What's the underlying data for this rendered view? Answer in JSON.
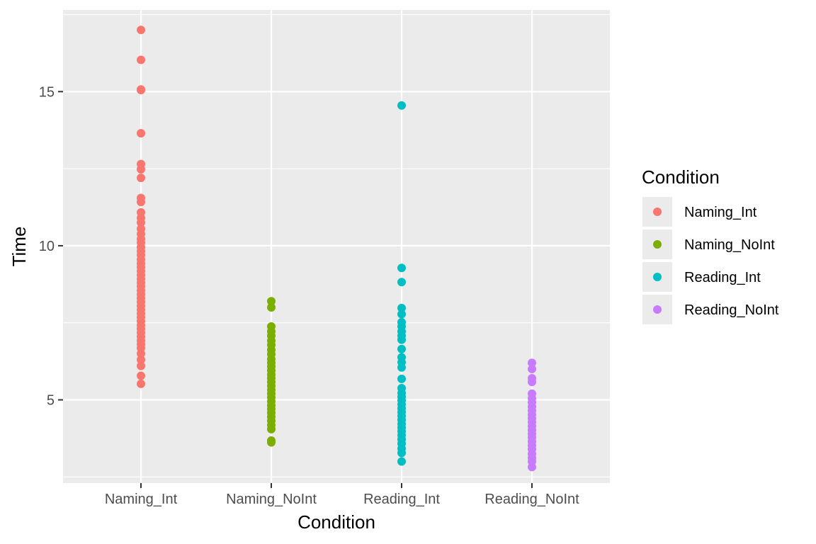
{
  "chart_data": {
    "type": "scatter",
    "title": "",
    "xlabel": "Condition",
    "ylabel": "Time",
    "categories": [
      "Naming_Int",
      "Naming_NoInt",
      "Reading_Int",
      "Reading_NoInt"
    ],
    "ylim": [
      2.3,
      17.65
    ],
    "y_ticks": [
      5,
      10,
      15
    ],
    "y_tick_labels": [
      "5",
      "10",
      "15"
    ],
    "grid": true,
    "legend": {
      "title": "Condition",
      "position": "right",
      "entries": [
        "Naming_Int",
        "Naming_NoInt",
        "Reading_Int",
        "Reading_NoInt"
      ]
    },
    "series": [
      {
        "name": "Naming_Int",
        "color": "#F8766D",
        "values": [
          17.0,
          16.03,
          15.07,
          15.05,
          13.65,
          12.65,
          12.48,
          12.2,
          11.55,
          11.42,
          11.08,
          10.9,
          10.75,
          10.55,
          10.38,
          10.22,
          10.1,
          9.95,
          9.82,
          9.7,
          9.55,
          9.42,
          9.3,
          9.18,
          9.05,
          8.92,
          8.8,
          8.68,
          8.55,
          8.42,
          8.3,
          8.18,
          8.05,
          7.92,
          7.8,
          7.68,
          7.55,
          7.42,
          7.3,
          7.18,
          7.05,
          6.92,
          6.8,
          6.68,
          6.5,
          6.3,
          6.1,
          5.78,
          5.52
        ]
      },
      {
        "name": "Naming_NoInt",
        "color": "#7CAE00",
        "values": [
          8.2,
          8.0,
          7.38,
          7.22,
          7.08,
          6.92,
          6.78,
          6.62,
          6.48,
          6.32,
          6.2,
          6.08,
          5.95,
          5.82,
          5.7,
          5.58,
          5.45,
          5.32,
          5.2,
          5.08,
          4.95,
          4.82,
          4.7,
          4.58,
          4.45,
          4.32,
          4.18,
          4.05,
          3.68,
          3.62
        ]
      },
      {
        "name": "Reading_Int",
        "color": "#00BFC4",
        "values": [
          14.55,
          9.28,
          8.82,
          7.98,
          7.78,
          7.52,
          7.38,
          7.22,
          7.08,
          6.95,
          6.65,
          6.38,
          6.22,
          6.05,
          5.68,
          5.38,
          5.22,
          5.1,
          4.98,
          4.85,
          4.72,
          4.6,
          4.48,
          4.35,
          4.22,
          4.1,
          3.98,
          3.85,
          3.72,
          3.58,
          3.42,
          3.28,
          3.0
        ]
      },
      {
        "name": "Reading_NoInt",
        "color": "#C77CFF",
        "values": [
          6.2,
          6.0,
          5.7,
          5.58,
          5.2,
          5.05,
          4.92,
          4.78,
          4.65,
          4.52,
          4.4,
          4.28,
          4.15,
          4.02,
          3.9,
          3.78,
          3.65,
          3.52,
          3.4,
          3.25,
          3.12,
          3.0,
          2.82
        ]
      }
    ]
  },
  "colors": {
    "panel_background": "#EBEBEB",
    "grid_line": "#FFFFFF"
  }
}
